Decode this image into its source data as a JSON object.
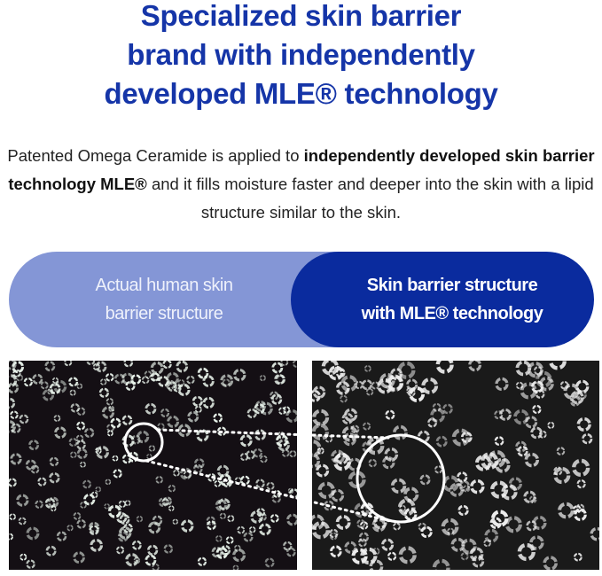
{
  "headline": {
    "lines": [
      "Specialized skin barrier",
      "brand with independently",
      "developed MLE® technology"
    ],
    "color": "#1535a8"
  },
  "description": {
    "part1": "Patented Omega Ceramide is applied to ",
    "bold": "independently developed skin barrier technology MLE®",
    "part2": " and it fills moisture faster and deeper into the skin with a lipid structure similar to the skin."
  },
  "comparison": {
    "left_label_1": "Actual human skin",
    "left_label_2": "barrier structure",
    "right_label_1": "Skin barrier structure",
    "right_label_2": "with MLE® technology",
    "left_color": "#8496d6",
    "right_color": "#0a2b9e"
  },
  "images": {
    "left": "micrograph of human skin barrier structure",
    "right": "micrograph of MLE skin barrier structure (magnified)"
  }
}
